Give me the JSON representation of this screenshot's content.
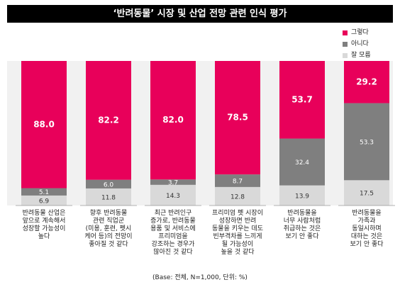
{
  "title": "‘반려동물’ 시장 및 산업 전망 관련 인식 평가",
  "footer_note": "(Base: 전체, N=1,000, 단위: %)",
  "colors": {
    "yes": "#e8005a",
    "no": "#7f7f7f",
    "dontknow": "#d9d9d9",
    "band": "#f1f1f1",
    "title_bg": "#000000"
  },
  "chart_data": {
    "type": "bar",
    "stacked": true,
    "ylim": [
      0,
      100
    ],
    "legend_position": "top-right",
    "categories": [
      [
        "반려동물 산업은",
        "앞으로 계속해서",
        "성장할 가능성이",
        "높다"
      ],
      [
        "향후 반려동물",
        "관련 직업군",
        "(미용, 훈련, 펫시",
        "케어 등)의 전망이",
        "좋아질 것 같다"
      ],
      [
        "최근 반려인구",
        "증가로, 반려동물",
        "용품 및 서비스에",
        "프리미엄을",
        "강조하는 경우가",
        "많아진 것 같다"
      ],
      [
        "프리미엄 펫 시장이",
        "성장하면 반려",
        "동물을 키우는 데도",
        "빈부격차를 느끼게",
        "될 가능성이",
        "높을 것 같다"
      ],
      [
        "반려동물을",
        "너무 사람처럼",
        "취급하는 것은",
        "보기 안 좋다"
      ],
      [
        "반려동물을",
        "가족과",
        "동일시하며",
        "대하는 것은",
        "보기 안 좋다"
      ]
    ],
    "series": [
      {
        "name": "그렇다",
        "key": "yes",
        "values": [
          88.0,
          82.2,
          82.0,
          78.5,
          53.7,
          29.2
        ],
        "labels": [
          "88.0",
          "82.2",
          "82.0",
          "78.5",
          "53.7",
          "29.2"
        ]
      },
      {
        "name": "아니다",
        "key": "no",
        "values": [
          5.1,
          6.0,
          3.7,
          8.7,
          32.4,
          53.3
        ],
        "labels": [
          "5.1",
          "6.0",
          "3.7",
          "8.7",
          "32.4",
          "53.3"
        ]
      },
      {
        "name": "잘 모름",
        "key": "dontknow",
        "values": [
          6.9,
          11.8,
          14.3,
          12.8,
          13.9,
          17.5
        ],
        "labels": [
          "6.9",
          "11.8",
          "14.3",
          "12.8",
          "13.9",
          "17.5"
        ]
      }
    ]
  }
}
